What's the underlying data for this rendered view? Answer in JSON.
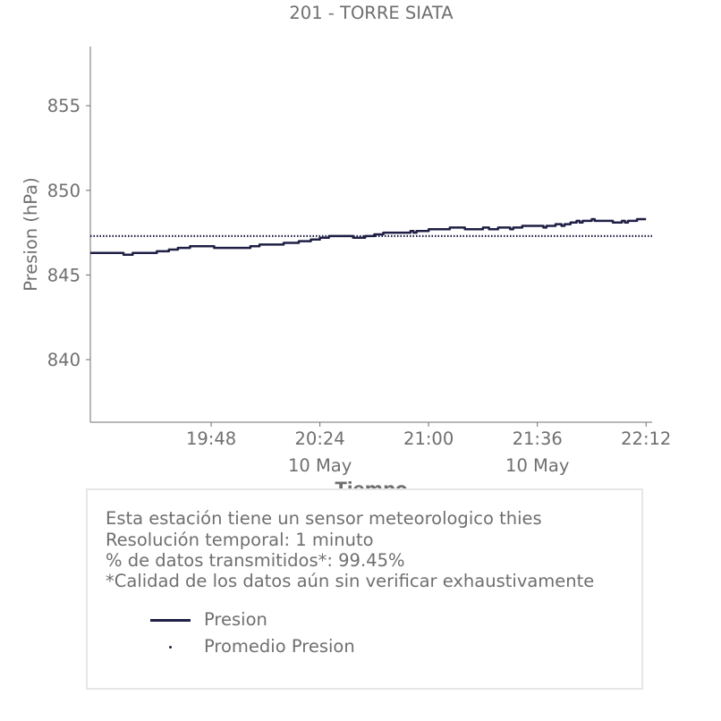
{
  "chart_data": {
    "type": "line",
    "title": "201 - TORRE SIATA",
    "xlabel": "Tiempo",
    "ylabel": "Presion (hPa)",
    "x_range": [
      "19:08",
      "22:14"
    ],
    "ylim": [
      836.3,
      858.5
    ],
    "y_ticks": [
      840,
      845,
      850,
      855
    ],
    "x_ticks": [
      {
        "time": "19:48",
        "label": "19:48",
        "sublabel": ""
      },
      {
        "time": "20:24",
        "label": "20:24",
        "sublabel": "10 May"
      },
      {
        "time": "21:00",
        "label": "21:00",
        "sublabel": ""
      },
      {
        "time": "21:36",
        "label": "21:36",
        "sublabel": "10 May"
      },
      {
        "time": "22:12",
        "label": "22:12",
        "sublabel": ""
      }
    ],
    "grid": false,
    "series": [
      {
        "name": "Presion",
        "style": "line",
        "color": "#1f1f45",
        "points": [
          [
            "19:08",
            846.3
          ],
          [
            "19:18",
            846.3
          ],
          [
            "19:19",
            846.2
          ],
          [
            "19:21",
            846.2
          ],
          [
            "19:22",
            846.3
          ],
          [
            "19:29",
            846.3
          ],
          [
            "19:30",
            846.4
          ],
          [
            "19:33",
            846.4
          ],
          [
            "19:34",
            846.5
          ],
          [
            "19:36",
            846.5
          ],
          [
            "19:37",
            846.6
          ],
          [
            "19:40",
            846.6
          ],
          [
            "19:41",
            846.7
          ],
          [
            "19:48",
            846.7
          ],
          [
            "19:49",
            846.6
          ],
          [
            "20:00",
            846.6
          ],
          [
            "20:01",
            846.7
          ],
          [
            "20:03",
            846.7
          ],
          [
            "20:04",
            846.8
          ],
          [
            "20:11",
            846.8
          ],
          [
            "20:12",
            846.9
          ],
          [
            "20:16",
            846.9
          ],
          [
            "20:17",
            847.0
          ],
          [
            "20:20",
            847.0
          ],
          [
            "20:21",
            847.1
          ],
          [
            "20:23",
            847.1
          ],
          [
            "20:24",
            847.2
          ],
          [
            "20:26",
            847.2
          ],
          [
            "20:27",
            847.3
          ],
          [
            "20:34",
            847.3
          ],
          [
            "20:35",
            847.2
          ],
          [
            "20:38",
            847.2
          ],
          [
            "20:39",
            847.3
          ],
          [
            "20:41",
            847.3
          ],
          [
            "20:42",
            847.4
          ],
          [
            "20:44",
            847.4
          ],
          [
            "20:45",
            847.5
          ],
          [
            "20:53",
            847.5
          ],
          [
            "20:54",
            847.6
          ],
          [
            "20:55",
            847.5
          ],
          [
            "20:56",
            847.6
          ],
          [
            "20:59",
            847.6
          ],
          [
            "21:00",
            847.7
          ],
          [
            "21:06",
            847.7
          ],
          [
            "21:07",
            847.8
          ],
          [
            "21:11",
            847.8
          ],
          [
            "21:12",
            847.7
          ],
          [
            "21:17",
            847.7
          ],
          [
            "21:18",
            847.8
          ],
          [
            "21:20",
            847.7
          ],
          [
            "21:22",
            847.7
          ],
          [
            "21:23",
            847.8
          ],
          [
            "21:26",
            847.8
          ],
          [
            "21:27",
            847.7
          ],
          [
            "21:28",
            847.8
          ],
          [
            "21:30",
            847.8
          ],
          [
            "21:31",
            847.9
          ],
          [
            "21:37",
            847.9
          ],
          [
            "21:38",
            847.8
          ],
          [
            "21:39",
            847.9
          ],
          [
            "21:41",
            847.9
          ],
          [
            "21:42",
            848.0
          ],
          [
            "21:44",
            847.9
          ],
          [
            "21:45",
            848.0
          ],
          [
            "21:47",
            848.1
          ],
          [
            "21:49",
            848.2
          ],
          [
            "21:50",
            848.1
          ],
          [
            "21:51",
            848.2
          ],
          [
            "21:53",
            848.2
          ],
          [
            "21:54",
            848.3
          ],
          [
            "21:55",
            848.2
          ],
          [
            "22:00",
            848.2
          ],
          [
            "22:01",
            848.1
          ],
          [
            "22:03",
            848.1
          ],
          [
            "22:04",
            848.2
          ],
          [
            "22:05",
            848.1
          ],
          [
            "22:06",
            848.2
          ],
          [
            "22:08",
            848.2
          ],
          [
            "22:09",
            848.3
          ],
          [
            "22:12",
            848.3
          ]
        ]
      },
      {
        "name": "Promedio Presion",
        "style": "dotted",
        "color": "#1f1f45",
        "value": 847.3
      }
    ],
    "legend_position": "bottom"
  },
  "info": {
    "line1": "Esta estación tiene un sensor meteorologico thies",
    "line2": "Resolución temporal: 1 minuto",
    "line3": "% de datos transmitidos*: 99.45%",
    "line4": "*Calidad de los datos aún sin verificar exhaustivamente"
  },
  "legend": {
    "presion": "Presion",
    "promedio": "Promedio Presion"
  },
  "colors": {
    "series": "#1f1f45",
    "text": "#6f6f6f",
    "axis": "#6f6f6f",
    "box_border": "#e6e6e6"
  }
}
